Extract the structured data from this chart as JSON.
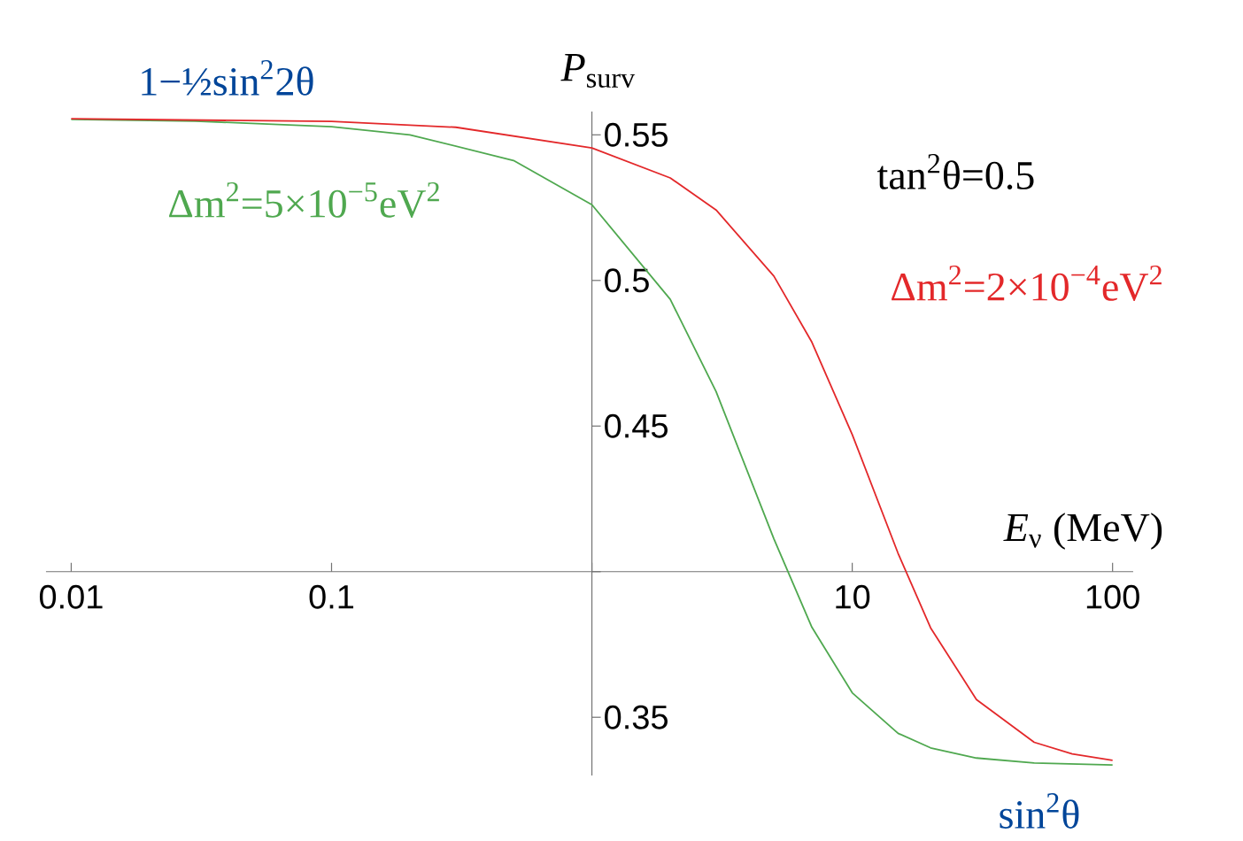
{
  "chart_data": {
    "type": "line",
    "log": "x",
    "xlabel": "*E*$_{ν}$ (MeV)",
    "ylabel": "*P*$_{surv}$",
    "xlim": [
      0.008,
      120
    ],
    "ylim": [
      0.33,
      0.558
    ],
    "xticks": [
      0.01,
      0.1,
      {
        "value": 1,
        "label": null
      },
      10,
      100
    ],
    "yticks": [
      0.35,
      {
        "value": 0.4,
        "label": null
      },
      0.45,
      0.5,
      0.55
    ],
    "annotations": [
      "1−½sin$^{2}$2θ",
      "tan$^{2}$θ=0.5",
      "sin$^{2}$θ"
    ],
    "series": [
      {
        "name": "Δm$^{2}$=5×10$^{−5}$eV$^{2}$",
        "color": "#4fa84f",
        "x": [
          0.01,
          0.03,
          0.1,
          0.2,
          0.5,
          1,
          2,
          3,
          5,
          7,
          10,
          15,
          20,
          30,
          50,
          100
        ],
        "values": [
          0.5553,
          0.5547,
          0.5528,
          0.55,
          0.5412,
          0.526,
          0.4935,
          0.4618,
          0.4113,
          0.3809,
          0.3584,
          0.3445,
          0.3395,
          0.336,
          0.3343,
          0.3336
        ]
      },
      {
        "name": "Δm$^{2}$=2×10$^{−4}$eV$^{2}$",
        "color": "#e3282a",
        "x": [
          0.01,
          0.1,
          0.3,
          1,
          2,
          3,
          5,
          7,
          10,
          15,
          20,
          30,
          50,
          70,
          100
        ],
        "values": [
          0.5555,
          0.5546,
          0.5526,
          0.5455,
          0.5352,
          0.5242,
          0.5015,
          0.4788,
          0.4471,
          0.4063,
          0.3807,
          0.3561,
          0.3414,
          0.3374,
          0.3352
        ]
      }
    ]
  }
}
